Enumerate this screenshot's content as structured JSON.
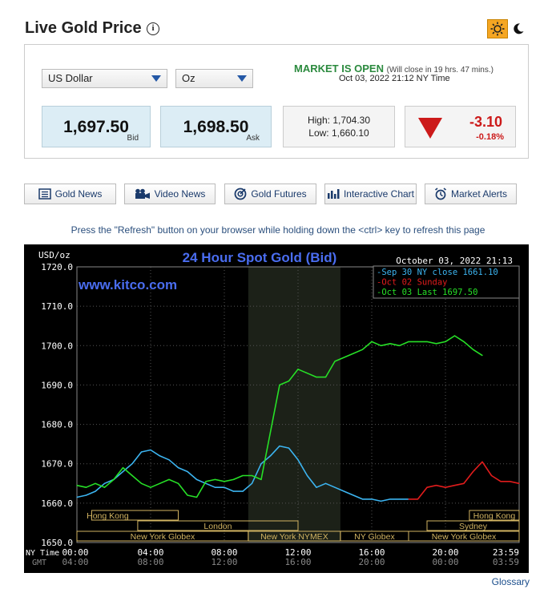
{
  "header": {
    "title": "Live Gold Price",
    "info_glyph": "i",
    "theme_toggle": {
      "light_icon": "sun-icon",
      "dark_icon": "moon-icon"
    }
  },
  "selectors": {
    "currency": "US Dollar",
    "unit": "Oz"
  },
  "market": {
    "status": "MARKET IS OPEN",
    "close_note": "(Will close in 19 hrs. 47 mins.)",
    "timestamp": "Oct 03, 2022 21:12 NY Time"
  },
  "prices": {
    "bid": "1,697.50",
    "bid_label": "Bid",
    "ask": "1,698.50",
    "ask_label": "Ask",
    "high": "High: 1,704.30",
    "low": "Low: 1,660.10",
    "change": "-3.10",
    "change_pct": "-0.18%",
    "direction": "down"
  },
  "buttons": [
    {
      "label": "Gold News",
      "icon": "newspaper-icon"
    },
    {
      "label": "Video News",
      "icon": "video-camera-icon"
    },
    {
      "label": "Gold Futures",
      "icon": "target-icon"
    },
    {
      "label": "Interactive Chart",
      "icon": "bar-chart-icon"
    },
    {
      "label": "Market Alerts",
      "icon": "alarm-clock-icon"
    }
  ],
  "refresh_note": "Press the \"Refresh\" button on your browser while holding down the <ctrl> key to refresh this page",
  "colors": {
    "sep30": "#3cb4f0",
    "oct02": "#e01c1c",
    "oct03": "#27e027",
    "title_blue": "#4a6df0",
    "session_text": "#d2b462",
    "chart_text": "#ffffff"
  },
  "chart_data": {
    "type": "line",
    "title": "24 Hour Spot Gold (Bid)",
    "watermark": "www.kitco.com",
    "ylabel": "USD/oz",
    "timestamp": "October 03, 2022 21:13",
    "ylim": [
      1650,
      1720
    ],
    "yticks": [
      "1720.0",
      "1710.0",
      "1700.0",
      "1690.0",
      "1680.0",
      "1670.0",
      "1660.0",
      "1650.0"
    ],
    "xlim": [
      0,
      24
    ],
    "xticks": [
      {
        "ny": "00:00",
        "gmt": "04:00"
      },
      {
        "ny": "04:00",
        "gmt": "08:00"
      },
      {
        "ny": "08:00",
        "gmt": "12:00"
      },
      {
        "ny": "12:00",
        "gmt": "16:00"
      },
      {
        "ny": "16:00",
        "gmt": "20:00"
      },
      {
        "ny": "20:00",
        "gmt": "00:00"
      },
      {
        "ny": "23:59",
        "gmt": "03:59"
      }
    ],
    "time_row_labels": {
      "ny": "NY Time",
      "gmt": "GMT"
    },
    "highlight_range": [
      9.3,
      14.3
    ],
    "legend": [
      {
        "text": "Sep 30 NY close 1661.10",
        "color": "#3cb4f0"
      },
      {
        "text": "Oct 02 Sunday",
        "color": "#e01c1c"
      },
      {
        "text": "Oct 03 Last 1697.50",
        "color": "#27e027"
      }
    ],
    "sessions": [
      {
        "label": "Hong Kong",
        "start": 0.8,
        "end": 5.5,
        "row": 0
      },
      {
        "label": "London",
        "start": 3.3,
        "end": 12.0,
        "row": 1
      },
      {
        "label": "New York Globex",
        "start": 0.0,
        "end": 9.3,
        "row": 2
      },
      {
        "label": "New York NYMEX",
        "start": 9.3,
        "end": 14.3,
        "row": 2
      },
      {
        "label": "NY Globex",
        "start": 14.3,
        "end": 18.0,
        "row": 2
      },
      {
        "label": "Hong Kong",
        "start": 21.3,
        "end": 24.0,
        "row": 0
      },
      {
        "label": "Sydney",
        "start": 19.0,
        "end": 24.0,
        "row": 1
      },
      {
        "label": "New York Globex",
        "start": 18.0,
        "end": 24.0,
        "row": 2
      }
    ],
    "series": [
      {
        "name": "Sep 30 NY close 1661.10",
        "color": "#3cb4f0",
        "x": [
          0,
          0.5,
          1,
          1.5,
          2,
          2.5,
          3,
          3.5,
          4,
          4.5,
          5,
          5.5,
          6,
          6.5,
          7,
          7.5,
          8,
          8.5,
          9,
          9.5,
          10,
          10.5,
          11,
          11.5,
          12,
          12.5,
          13,
          13.5,
          14,
          14.5,
          15,
          15.5,
          16,
          16.5,
          17,
          17.5,
          18
        ],
        "values": [
          1661.5,
          1662,
          1663,
          1665,
          1666,
          1668,
          1670,
          1673,
          1673.5,
          1672,
          1671,
          1669,
          1668,
          1666,
          1665,
          1664,
          1664,
          1663,
          1663,
          1665,
          1670,
          1672,
          1674.5,
          1674,
          1671,
          1667,
          1664,
          1665,
          1664,
          1663,
          1662,
          1661,
          1661,
          1660.5,
          1661,
          1661,
          1661
        ]
      },
      {
        "name": "Oct 02 Sunday",
        "color": "#e01c1c",
        "x": [
          18,
          18.5,
          19,
          19.5,
          20,
          20.5,
          21,
          21.5,
          22,
          22.5,
          23,
          23.5,
          24
        ],
        "values": [
          1661,
          1661,
          1664,
          1664.5,
          1664,
          1664.5,
          1665,
          1668,
          1670.5,
          1667,
          1665.5,
          1665.5,
          1665
        ]
      },
      {
        "name": "Oct 03 Last 1697.50",
        "color": "#27e027",
        "x": [
          0,
          0.5,
          1,
          1.5,
          2,
          2.5,
          3,
          3.5,
          4,
          4.5,
          5,
          5.5,
          6,
          6.5,
          7,
          7.5,
          8,
          8.5,
          9,
          9.5,
          10,
          10.5,
          11,
          11.5,
          12,
          12.5,
          13,
          13.5,
          14,
          14.5,
          15,
          15.5,
          16,
          16.5,
          17,
          17.5,
          18,
          18.5,
          19,
          19.5,
          20,
          20.5,
          21,
          21.5,
          22
        ],
        "values": [
          1664.5,
          1664,
          1665,
          1664,
          1666,
          1669,
          1667,
          1665,
          1664,
          1665,
          1666,
          1665,
          1662,
          1661.5,
          1665.5,
          1666,
          1665.5,
          1666,
          1667,
          1667,
          1666,
          1678,
          1690,
          1691,
          1694,
          1693,
          1692,
          1692,
          1696,
          1697,
          1698,
          1699,
          1701,
          1700,
          1700.5,
          1700,
          1701,
          1701,
          1701,
          1700.5,
          1701,
          1702.5,
          1701,
          1699,
          1697.5
        ]
      }
    ]
  },
  "footer": {
    "glossary": "Glossary"
  }
}
